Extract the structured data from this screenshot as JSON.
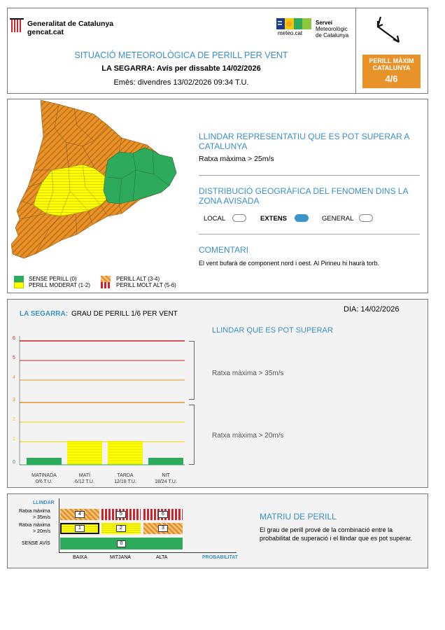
{
  "header": {
    "gencat_line1": "Generalitat de Catalunya",
    "gencat_line2": "gencat.cat",
    "meteocat_caption": "meteo.cat",
    "servei_line1": "Servei",
    "servei_line2": "Meteorològic",
    "servei_line3": "de Catalunya",
    "title": "SITUACIÓ METEOROLÒGICA DE PERILL PER VENT",
    "subtitle": "LA SEGARRA: Avís per dissabte 14/02/2026",
    "issued": "Emès: divendres 13/02/2026 09:34 T.U.",
    "max_danger_label_1": "PERILL MÀXIM",
    "max_danger_label_2": "CATALUNYA",
    "max_danger_value": "4/6",
    "colors": {
      "orange": "#e8932a",
      "title_blue": "#3a8fc9"
    }
  },
  "map_section": {
    "threshold_heading": "LLINDAR REPRESENTATIU QUE ES POT SUPERAR A CATALUNYA",
    "threshold_value": "Ratxa màxima > 25m/s",
    "distribution_heading": "DISTRIBUCIÓ GEOGRÀFICA DEL FENOMEN DINS LA ZONA AVISADA",
    "distribution_options": [
      {
        "label": "LOCAL",
        "selected": false
      },
      {
        "label": "EXTENS",
        "selected": true
      },
      {
        "label": "GENERAL",
        "selected": false
      }
    ],
    "comments_heading": "COMENTARI",
    "comments_text": "El vent bufarà de component nord i oest. Al Pirineu hi haurà torb.",
    "legend": [
      {
        "label": "SENSE PERILL (0)",
        "color": "#2eaa5c"
      },
      {
        "label": "PERILL MODERAT (1-2)",
        "color": "#ffff00"
      },
      {
        "label": "PERILL ALT (3-4)",
        "color": "#e8932a"
      },
      {
        "label": "PERILL MOLT ALT (5-6)",
        "color": "#d4212a"
      }
    ]
  },
  "danger_chart": {
    "region": "LA SEGARRA:",
    "title": "GRAU DE PERILL 1/6 PER VENT",
    "date_label": "DIA: 14/02/2026",
    "threshold_heading": "LLINDAR QUE ES POT SUPERAR",
    "threshold_high": "Ratxa màxima > 35m/s",
    "threshold_low": "Ratxa màxima > 20m/s",
    "y_ticks": [
      "0",
      "1",
      "2",
      "3",
      "4",
      "5",
      "6"
    ],
    "periods": [
      {
        "name": "MATINADA",
        "range": "0/6 T.U."
      },
      {
        "name": "MATÍ",
        "range": "6/12 T.U."
      },
      {
        "name": "TARDA",
        "range": "12/18 T.U."
      },
      {
        "name": "NIT",
        "range": "18/24 T.U."
      }
    ]
  },
  "chart_data": {
    "type": "bar",
    "categories": [
      "MATINADA",
      "MATÍ",
      "TARDA",
      "NIT"
    ],
    "values": [
      0,
      1,
      1,
      0
    ],
    "ylim": [
      0,
      6
    ],
    "xlabel": "",
    "ylabel": "",
    "title": "GRAU DE PERILL 1/6 PER VENT"
  },
  "matrix": {
    "heading": "MATRIU DE PERILL",
    "description": "El grau de perill prové de la combinació entre la probabilitat de superació i el llindar que es pot superar.",
    "llindar_label": "LLINDAR",
    "row_high_1": "Ratxa màxima",
    "row_high_2": "> 35m/s",
    "row_low_1": "Ratxa màxima",
    "row_low_2": "> 20m/s",
    "row_none": "SENSE AVÍS",
    "col_low": "BAIXA",
    "col_mid": "MITJANA",
    "col_high": "ALTA",
    "prob_label": "PROBABILITAT",
    "cells_high": [
      "4",
      "5",
      "6"
    ],
    "cells_low": [
      "1",
      "2",
      "3"
    ],
    "cell_none": "0"
  }
}
